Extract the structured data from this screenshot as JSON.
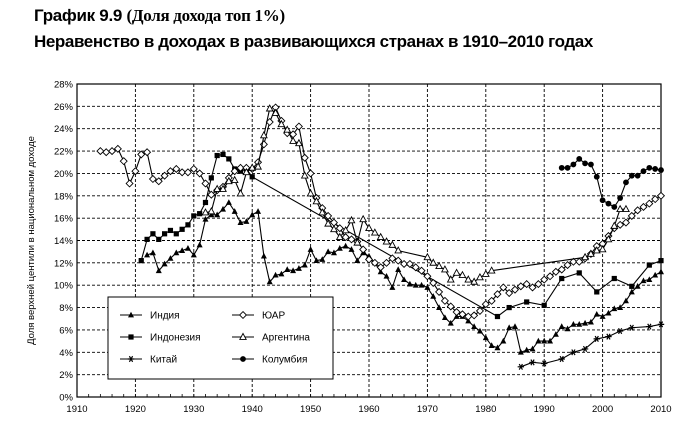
{
  "heading": {
    "figure": "График 9.9",
    "subtitle": "(Доля дохода топ 1%)",
    "title": "Неравенство в доходах в развивающихся странах в 1910–2010 годах"
  },
  "chart_data": {
    "type": "line",
    "ylabel": "Доля верхней центили в национальном доходе",
    "xlabel": "",
    "xlim": [
      1910,
      2010
    ],
    "ylim": [
      0,
      28
    ],
    "x_ticks": [
      "1910",
      "1920",
      "1930",
      "1940",
      "1950",
      "1960",
      "1970",
      "1980",
      "1990",
      "2000",
      "2010"
    ],
    "y_ticks": [
      "0%",
      "2%",
      "4%",
      "6%",
      "8%",
      "10%",
      "12%",
      "14%",
      "16%",
      "18%",
      "20%",
      "22%",
      "24%",
      "26%",
      "28%"
    ],
    "legend_position": "bottom-left",
    "series": [
      {
        "name": "Индия",
        "marker": "triangle",
        "points": [
          [
            1922,
            12.7
          ],
          [
            1923,
            12.9
          ],
          [
            1924,
            11.3
          ],
          [
            1925,
            11.9
          ],
          [
            1926,
            12.4
          ],
          [
            1927,
            12.9
          ],
          [
            1928,
            13.1
          ],
          [
            1929,
            13.3
          ],
          [
            1930,
            12.7
          ],
          [
            1931,
            13.6
          ],
          [
            1932,
            15.9
          ],
          [
            1933,
            16.3
          ],
          [
            1934,
            16.3
          ],
          [
            1935,
            16.8
          ],
          [
            1936,
            17.4
          ],
          [
            1937,
            16.6
          ],
          [
            1938,
            15.6
          ],
          [
            1939,
            15.7
          ],
          [
            1940,
            16.3
          ],
          [
            1941,
            16.6
          ],
          [
            1942,
            12.6
          ],
          [
            1943,
            10.3
          ],
          [
            1944,
            10.9
          ],
          [
            1945,
            11.0
          ],
          [
            1946,
            11.4
          ],
          [
            1947,
            11.3
          ],
          [
            1948,
            11.5
          ],
          [
            1949,
            11.8
          ],
          [
            1950,
            13.2
          ],
          [
            1951,
            12.2
          ],
          [
            1952,
            12.3
          ],
          [
            1953,
            13.0
          ],
          [
            1954,
            12.9
          ],
          [
            1955,
            13.3
          ],
          [
            1956,
            13.5
          ],
          [
            1957,
            13.2
          ],
          [
            1958,
            12.2
          ],
          [
            1959,
            12.9
          ],
          [
            1960,
            12.6
          ],
          [
            1961,
            12.0
          ],
          [
            1962,
            11.2
          ],
          [
            1963,
            10.8
          ],
          [
            1964,
            9.8
          ],
          [
            1965,
            11.4
          ],
          [
            1966,
            10.5
          ],
          [
            1967,
            10.1
          ],
          [
            1968,
            10.0
          ],
          [
            1969,
            10.0
          ],
          [
            1970,
            9.8
          ],
          [
            1971,
            9.0
          ],
          [
            1972,
            8.0
          ],
          [
            1973,
            7.1
          ],
          [
            1974,
            6.6
          ],
          [
            1975,
            7.2
          ],
          [
            1976,
            7.2
          ],
          [
            1977,
            6.8
          ],
          [
            1978,
            6.3
          ],
          [
            1979,
            5.9
          ],
          [
            1980,
            5.3
          ],
          [
            1981,
            4.6
          ],
          [
            1982,
            4.4
          ],
          [
            1983,
            5.0
          ],
          [
            1984,
            6.2
          ],
          [
            1985,
            6.3
          ],
          [
            1986,
            4.0
          ],
          [
            1987,
            4.2
          ],
          [
            1988,
            4.3
          ],
          [
            1989,
            5.0
          ],
          [
            1990,
            5.0
          ],
          [
            1991,
            5.0
          ],
          [
            1992,
            5.6
          ],
          [
            1993,
            6.3
          ],
          [
            1994,
            6.1
          ],
          [
            1995,
            6.5
          ],
          [
            1996,
            6.5
          ],
          [
            1997,
            6.6
          ],
          [
            1998,
            6.7
          ],
          [
            1999,
            7.4
          ],
          [
            2000,
            7.2
          ],
          [
            2001,
            7.5
          ],
          [
            2002,
            7.9
          ],
          [
            2003,
            8.0
          ],
          [
            2004,
            8.6
          ],
          [
            2005,
            9.4
          ],
          [
            2006,
            9.9
          ],
          [
            2007,
            10.4
          ],
          [
            2008,
            10.5
          ],
          [
            2009,
            10.9
          ],
          [
            2010,
            11.2
          ]
        ]
      },
      {
        "name": "Индонезия",
        "marker": "square",
        "points": [
          [
            1921,
            12.2
          ],
          [
            1922,
            14.1
          ],
          [
            1923,
            14.6
          ],
          [
            1924,
            14.1
          ],
          [
            1925,
            14.6
          ],
          [
            1926,
            14.9
          ],
          [
            1927,
            14.6
          ],
          [
            1928,
            15.0
          ],
          [
            1929,
            15.4
          ],
          [
            1930,
            16.2
          ],
          [
            1931,
            16.4
          ],
          [
            1932,
            17.4
          ],
          [
            1933,
            19.6
          ],
          [
            1934,
            21.6
          ],
          [
            1935,
            21.7
          ],
          [
            1936,
            21.3
          ],
          [
            1937,
            20.4
          ],
          [
            1938,
            20.2
          ],
          [
            1939,
            20.4
          ],
          [
            1940,
            19.7
          ],
          [
            1982,
            7.2
          ],
          [
            1984,
            8.0
          ],
          [
            1987,
            8.5
          ],
          [
            1990,
            8.2
          ],
          [
            1993,
            10.6
          ],
          [
            1996,
            11.1
          ],
          [
            1999,
            9.4
          ],
          [
            2002,
            10.6
          ],
          [
            2005,
            9.9
          ],
          [
            2008,
            11.8
          ],
          [
            2010,
            12.2
          ]
        ]
      },
      {
        "name": "Китай",
        "marker": "asterisk",
        "points": [
          [
            1986,
            2.7
          ],
          [
            1988,
            3.1
          ],
          [
            1990,
            3.0
          ],
          [
            1993,
            3.4
          ],
          [
            1995,
            4.0
          ],
          [
            1997,
            4.3
          ],
          [
            1999,
            5.2
          ],
          [
            2001,
            5.4
          ],
          [
            2003,
            5.9
          ],
          [
            2005,
            6.2
          ],
          [
            2008,
            6.3
          ],
          [
            2010,
            6.5
          ]
        ]
      },
      {
        "name": "ЮАР",
        "marker": "diamond",
        "points": [
          [
            1914,
            22.0
          ],
          [
            1915,
            21.9
          ],
          [
            1916,
            22.0
          ],
          [
            1917,
            22.2
          ],
          [
            1918,
            21.1
          ],
          [
            1919,
            19.1
          ],
          [
            1920,
            20.2
          ],
          [
            1921,
            21.7
          ],
          [
            1922,
            21.9
          ],
          [
            1923,
            19.5
          ],
          [
            1924,
            19.3
          ],
          [
            1925,
            19.8
          ],
          [
            1926,
            20.2
          ],
          [
            1927,
            20.4
          ],
          [
            1928,
            20.1
          ],
          [
            1929,
            20.1
          ],
          [
            1930,
            20.4
          ],
          [
            1931,
            20.0
          ],
          [
            1932,
            19.1
          ],
          [
            1933,
            18.1
          ],
          [
            1934,
            18.5
          ],
          [
            1935,
            18.8
          ],
          [
            1936,
            19.6
          ],
          [
            1937,
            20.2
          ],
          [
            1938,
            20.5
          ],
          [
            1939,
            20.5
          ],
          [
            1940,
            20.4
          ],
          [
            1941,
            21.0
          ],
          [
            1942,
            22.6
          ],
          [
            1943,
            24.6
          ],
          [
            1944,
            25.9
          ],
          [
            1945,
            24.7
          ],
          [
            1946,
            23.6
          ],
          [
            1947,
            23.5
          ],
          [
            1948,
            24.2
          ],
          [
            1949,
            21.4
          ],
          [
            1950,
            20.0
          ],
          [
            1951,
            17.8
          ],
          [
            1952,
            16.9
          ],
          [
            1953,
            16.2
          ],
          [
            1954,
            15.6
          ],
          [
            1955,
            15.1
          ],
          [
            1956,
            14.3
          ],
          [
            1957,
            14.1
          ],
          [
            1958,
            13.9
          ],
          [
            1959,
            13.2
          ],
          [
            1960,
            12.3
          ],
          [
            1961,
            12.0
          ],
          [
            1962,
            11.6
          ],
          [
            1963,
            12.0
          ],
          [
            1964,
            12.4
          ],
          [
            1965,
            12.2
          ],
          [
            1966,
            11.9
          ],
          [
            1967,
            11.9
          ],
          [
            1968,
            11.6
          ],
          [
            1969,
            11.3
          ],
          [
            1970,
            10.8
          ],
          [
            1971,
            10.2
          ],
          [
            1972,
            9.4
          ],
          [
            1973,
            8.6
          ],
          [
            1974,
            8.1
          ],
          [
            1975,
            7.6
          ],
          [
            1976,
            7.4
          ],
          [
            1977,
            7.2
          ],
          [
            1978,
            7.3
          ],
          [
            1979,
            7.7
          ],
          [
            1980,
            8.3
          ],
          [
            1981,
            8.6
          ],
          [
            1982,
            9.2
          ],
          [
            1983,
            9.8
          ],
          [
            1984,
            9.3
          ],
          [
            1985,
            9.6
          ],
          [
            1986,
            9.9
          ],
          [
            1987,
            10.1
          ],
          [
            1988,
            9.8
          ],
          [
            1989,
            10.1
          ],
          [
            1990,
            10.5
          ],
          [
            1991,
            10.8
          ],
          [
            1992,
            11.2
          ],
          [
            1993,
            11.4
          ],
          [
            1994,
            11.8
          ],
          [
            1995,
            12.1
          ],
          [
            1996,
            12.1
          ],
          [
            1997,
            12.4
          ],
          [
            1998,
            12.8
          ],
          [
            1999,
            13.5
          ],
          [
            2000,
            13.7
          ],
          [
            2001,
            14.4
          ],
          [
            2002,
            15.1
          ],
          [
            2003,
            15.4
          ],
          [
            2004,
            15.6
          ],
          [
            2005,
            16.2
          ],
          [
            2006,
            16.7
          ],
          [
            2007,
            17.0
          ],
          [
            2008,
            17.3
          ],
          [
            2009,
            17.7
          ],
          [
            2010,
            18.0
          ]
        ]
      },
      {
        "name": "Аргентина",
        "marker": "triangle-open",
        "points": [
          [
            1932,
            16.5
          ],
          [
            1933,
            16.6
          ],
          [
            1934,
            18.6
          ],
          [
            1935,
            18.6
          ],
          [
            1936,
            19.3
          ],
          [
            1937,
            19.4
          ],
          [
            1938,
            18.2
          ],
          [
            1939,
            20.1
          ],
          [
            1940,
            20.5
          ],
          [
            1941,
            20.6
          ],
          [
            1942,
            23.4
          ],
          [
            1943,
            25.8
          ],
          [
            1944,
            25.4
          ],
          [
            1945,
            24.4
          ],
          [
            1946,
            23.9
          ],
          [
            1947,
            22.9
          ],
          [
            1948,
            22.7
          ],
          [
            1949,
            19.8
          ],
          [
            1950,
            18.2
          ],
          [
            1951,
            17.5
          ],
          [
            1952,
            16.5
          ],
          [
            1953,
            15.5
          ],
          [
            1954,
            15.0
          ],
          [
            1955,
            14.3
          ],
          [
            1956,
            14.9
          ],
          [
            1957,
            15.8
          ],
          [
            1958,
            13.8
          ],
          [
            1959,
            15.9
          ],
          [
            1960,
            15.1
          ],
          [
            1961,
            14.7
          ],
          [
            1962,
            14.3
          ],
          [
            1963,
            13.9
          ],
          [
            1964,
            13.6
          ],
          [
            1965,
            13.1
          ],
          [
            1970,
            12.5
          ],
          [
            1971,
            12.0
          ],
          [
            1972,
            11.7
          ],
          [
            1973,
            11.4
          ],
          [
            1974,
            10.5
          ],
          [
            1975,
            11.1
          ],
          [
            1976,
            10.9
          ],
          [
            1977,
            10.5
          ],
          [
            1978,
            10.3
          ],
          [
            1979,
            10.7
          ],
          [
            1980,
            11.0
          ],
          [
            1981,
            11.3
          ],
          [
            1997,
            12.5
          ],
          [
            1998,
            12.8
          ],
          [
            1999,
            13.1
          ],
          [
            2000,
            13.2
          ],
          [
            2001,
            14.1
          ],
          [
            2002,
            15.3
          ],
          [
            2003,
            16.8
          ],
          [
            2004,
            16.8
          ]
        ]
      },
      {
        "name": "Колумбия",
        "marker": "circle",
        "points": [
          [
            1993,
            20.5
          ],
          [
            1994,
            20.5
          ],
          [
            1995,
            20.8
          ],
          [
            1996,
            21.3
          ],
          [
            1997,
            20.9
          ],
          [
            1998,
            20.8
          ],
          [
            1999,
            19.7
          ],
          [
            2000,
            17.6
          ],
          [
            2001,
            17.3
          ],
          [
            2002,
            17.0
          ],
          [
            2003,
            17.8
          ],
          [
            2004,
            19.2
          ],
          [
            2005,
            19.8
          ],
          [
            2006,
            19.8
          ],
          [
            2007,
            20.2
          ],
          [
            2008,
            20.5
          ],
          [
            2009,
            20.4
          ],
          [
            2010,
            20.3
          ]
        ]
      }
    ]
  }
}
